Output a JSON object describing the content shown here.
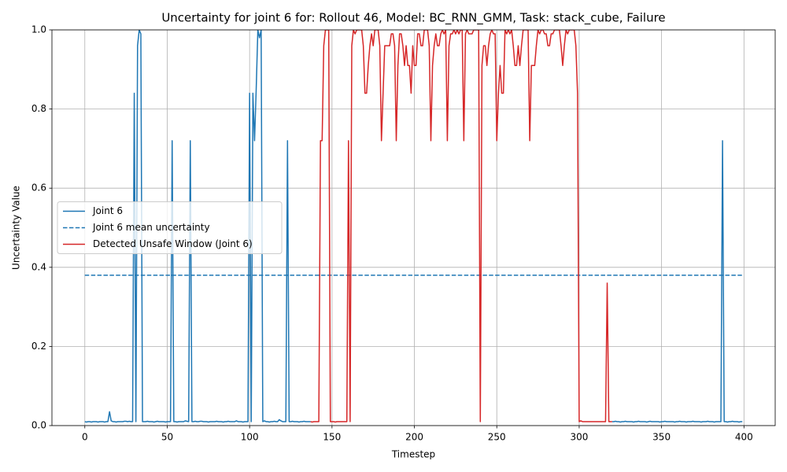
{
  "chart_data": {
    "type": "line",
    "title": "Uncertainty for joint 6 for: Rollout 46, Model: BC_RNN_GMM, Task: stack_cube, Failure",
    "xlabel": "Timestep",
    "ylabel": "Uncertainty Value",
    "xlim": [
      -19.95,
      418.95
    ],
    "ylim": [
      0,
      1
    ],
    "xticks": [
      0,
      50,
      100,
      150,
      200,
      250,
      300,
      350,
      400
    ],
    "yticks": [
      {
        "value": 0,
        "label": "0.0"
      },
      {
        "value": 0.2,
        "label": "0.2"
      },
      {
        "value": 0.4,
        "label": "0.4"
      },
      {
        "value": 0.6,
        "label": "0.6"
      },
      {
        "value": 0.8,
        "label": "0.8"
      },
      {
        "value": 1,
        "label": "1.0"
      }
    ],
    "grid": true,
    "legend": "center left",
    "series": [
      {
        "name": "Joint 6",
        "color": "#1f77b4",
        "style": "solid",
        "x": [
          0,
          1,
          2,
          3,
          4,
          5,
          6,
          7,
          8,
          9,
          10,
          11,
          12,
          13,
          14,
          15,
          16,
          17,
          18,
          19,
          20,
          21,
          22,
          23,
          24,
          25,
          26,
          27,
          28,
          29,
          30,
          31,
          32,
          33,
          34,
          35,
          36,
          37,
          38,
          39,
          40,
          41,
          42,
          43,
          44,
          45,
          46,
          47,
          48,
          49,
          50,
          51,
          52,
          53,
          54,
          55,
          56,
          57,
          58,
          59,
          60,
          61,
          62,
          63,
          64,
          65,
          66,
          67,
          68,
          69,
          70,
          71,
          72,
          73,
          74,
          75,
          76,
          77,
          78,
          79,
          80,
          81,
          82,
          83,
          84,
          85,
          86,
          87,
          88,
          89,
          90,
          91,
          92,
          93,
          94,
          95,
          96,
          97,
          98,
          99,
          100,
          101,
          102,
          103,
          104,
          105,
          106,
          107,
          108,
          109,
          110,
          111,
          112,
          113,
          114,
          115,
          116,
          117,
          118,
          119,
          120,
          121,
          122,
          123,
          124,
          125,
          126,
          127,
          128,
          129,
          130,
          131,
          132,
          133,
          134,
          135,
          136,
          137,
          138,
          139,
          140,
          141,
          142,
          143,
          144,
          145,
          146,
          147,
          148,
          149,
          150,
          151,
          152,
          153,
          154,
          155,
          156,
          157,
          158,
          159,
          160,
          161,
          162,
          163,
          164,
          165,
          166,
          167,
          168,
          169,
          170,
          171,
          172,
          173,
          174,
          175,
          176,
          177,
          178,
          179,
          180,
          181,
          182,
          183,
          184,
          185,
          186,
          187,
          188,
          189,
          190,
          191,
          192,
          193,
          194,
          195,
          196,
          197,
          198,
          199,
          200,
          201,
          202,
          203,
          204,
          205,
          206,
          207,
          208,
          209,
          210,
          211,
          212,
          213,
          214,
          215,
          216,
          217,
          218,
          219,
          220,
          221,
          222,
          223,
          224,
          225,
          226,
          227,
          228,
          229,
          230,
          231,
          232,
          233,
          234,
          235,
          236,
          237,
          238,
          239,
          240,
          241,
          242,
          243,
          244,
          245,
          246,
          247,
          248,
          249,
          250,
          251,
          252,
          253,
          254,
          255,
          256,
          257,
          258,
          259,
          260,
          261,
          262,
          263,
          264,
          265,
          266,
          267,
          268,
          269,
          270,
          271,
          272,
          273,
          274,
          275,
          276,
          277,
          278,
          279,
          280,
          281,
          282,
          283,
          284,
          285,
          286,
          287,
          288,
          289,
          290,
          291,
          292,
          293,
          294,
          295,
          296,
          297,
          298,
          299,
          300,
          301,
          302,
          303,
          304,
          305,
          306,
          307,
          308,
          309,
          310,
          311,
          312,
          313,
          314,
          315,
          316,
          317,
          318,
          319,
          320,
          321,
          322,
          323,
          324,
          325,
          326,
          327,
          328,
          329,
          330,
          331,
          332,
          333,
          334,
          335,
          336,
          337,
          338,
          339,
          340,
          341,
          342,
          343,
          344,
          345,
          346,
          347,
          348,
          349,
          350,
          351,
          352,
          353,
          354,
          355,
          356,
          357,
          358,
          359,
          360,
          361,
          362,
          363,
          364,
          365,
          366,
          367,
          368,
          369,
          370,
          371,
          372,
          373,
          374,
          375,
          376,
          377,
          378,
          379,
          380,
          381,
          382,
          383,
          384,
          385,
          386,
          387,
          388,
          389,
          390,
          391,
          392,
          393,
          394,
          395,
          396,
          397,
          398,
          399
        ],
        "values": [
          0.01,
          0.009,
          0.01,
          0.01,
          0.009,
          0.01,
          0.01,
          0.01,
          0.009,
          0.01,
          0.01,
          0.01,
          0.009,
          0.01,
          0.01,
          0.035,
          0.012,
          0.01,
          0.01,
          0.009,
          0.01,
          0.01,
          0.01,
          0.01,
          0.011,
          0.011,
          0.01,
          0.011,
          0.01,
          0.01,
          0.84,
          0.01,
          0.96,
          1.0,
          0.99,
          0.01,
          0.01,
          0.01,
          0.011,
          0.01,
          0.01,
          0.01,
          0.009,
          0.01,
          0.011,
          0.01,
          0.01,
          0.01,
          0.01,
          0.009,
          0.01,
          0.01,
          0.01,
          0.72,
          0.01,
          0.01,
          0.009,
          0.01,
          0.01,
          0.01,
          0.01,
          0.012,
          0.011,
          0.01,
          0.72,
          0.01,
          0.01,
          0.011,
          0.01,
          0.01,
          0.011,
          0.011,
          0.01,
          0.01,
          0.01,
          0.009,
          0.01,
          0.01,
          0.01,
          0.01,
          0.011,
          0.01,
          0.01,
          0.01,
          0.009,
          0.01,
          0.01,
          0.011,
          0.01,
          0.01,
          0.01,
          0.01,
          0.012,
          0.01,
          0.01,
          0.01,
          0.009,
          0.01,
          0.01,
          0.01,
          0.84,
          0.01,
          0.84,
          0.72,
          0.85,
          1.0,
          0.98,
          1.0,
          0.01,
          0.012,
          0.01,
          0.01,
          0.009,
          0.01,
          0.01,
          0.011,
          0.01,
          0.01,
          0.015,
          0.012,
          0.01,
          0.01,
          0.01,
          0.72,
          0.01,
          0.01,
          0.011,
          0.01,
          0.01,
          0.01,
          0.009,
          0.01,
          0.01,
          0.011,
          0.01,
          0.01,
          0.01,
          0.01,
          null,
          null,
          null,
          null,
          null,
          null,
          null,
          null,
          null,
          null,
          null,
          null,
          null,
          null,
          null,
          null,
          null,
          null,
          null,
          null,
          null,
          null,
          null,
          null,
          null,
          null,
          null,
          null,
          null,
          null,
          null,
          null,
          null,
          null,
          null,
          null,
          null,
          null,
          null,
          null,
          null,
          null,
          null,
          null,
          null,
          null,
          null,
          null,
          null,
          null,
          null,
          null,
          null,
          null,
          null,
          null,
          null,
          null,
          null,
          null,
          null,
          null,
          null,
          null,
          null,
          null,
          null,
          null,
          null,
          null,
          null,
          null,
          null,
          null,
          null,
          null,
          null,
          null,
          null,
          null,
          null,
          null,
          null,
          null,
          null,
          null,
          null,
          null,
          null,
          null,
          null,
          null,
          null,
          null,
          null,
          null,
          null,
          null,
          null,
          null,
          null,
          null,
          null,
          null,
          null,
          null,
          null,
          null,
          null,
          null,
          null,
          null,
          null,
          null,
          null,
          null,
          null,
          null,
          null,
          null,
          null,
          null,
          null,
          null,
          null,
          null,
          null,
          null,
          null,
          null,
          null,
          null,
          null,
          null,
          null,
          null,
          null,
          null,
          null,
          null,
          null,
          null,
          null,
          null,
          null,
          null,
          null,
          null,
          null,
          null,
          null,
          null,
          null,
          null,
          null,
          null,
          null,
          null,
          null,
          null,
          null,
          null,
          null,
          null,
          null,
          null,
          null,
          null,
          null,
          null,
          null,
          null,
          null,
          null,
          null,
          null,
          null,
          null,
          null,
          null,
          null,
          null,
          0.01,
          0.01,
          0.011,
          0.01,
          0.01,
          0.009,
          0.01,
          0.01,
          0.011,
          0.01,
          0.01,
          0.01,
          0.01,
          0.009,
          0.01,
          0.01,
          0.011,
          0.01,
          0.01,
          0.01,
          0.01,
          0.009,
          0.01,
          0.011,
          0.01,
          0.01,
          0.01,
          0.01,
          0.01,
          0.009,
          0.01,
          0.01,
          0.011,
          0.01,
          0.01,
          0.01,
          0.01,
          0.01,
          0.009,
          0.01,
          0.01,
          0.011,
          0.01,
          0.01,
          0.01,
          0.009,
          0.01,
          0.01,
          0.01,
          0.011,
          0.01,
          0.01,
          0.01,
          0.01,
          0.009,
          0.01,
          0.01,
          0.01,
          0.011,
          0.01,
          0.01,
          0.01,
          0.009,
          0.01,
          0.01,
          0.01,
          0.01,
          0.72,
          0.01,
          0.01,
          0.009,
          0.01,
          0.01,
          0.011,
          0.01,
          0.01,
          0.01,
          0.009,
          0.01,
          0.01
        ]
      },
      {
        "name": "Joint 6 mean uncertainty",
        "color": "#1f77b4",
        "style": "dashed",
        "x": [
          0,
          399
        ],
        "values": [
          0.38,
          0.38
        ]
      },
      {
        "name": "Detected Unsafe Window (Joint 6)",
        "color": "#d62728",
        "style": "solid",
        "x": [
          137,
          138,
          139,
          140,
          141,
          142,
          143,
          144,
          145,
          146,
          147,
          148,
          149,
          150,
          151,
          152,
          153,
          154,
          155,
          156,
          157,
          158,
          159,
          160,
          161,
          162,
          163,
          164,
          165,
          166,
          167,
          168,
          169,
          170,
          171,
          172,
          173,
          174,
          175,
          176,
          177,
          178,
          179,
          180,
          181,
          182,
          183,
          184,
          185,
          186,
          187,
          188,
          189,
          190,
          191,
          192,
          193,
          194,
          195,
          196,
          197,
          198,
          199,
          200,
          201,
          202,
          203,
          204,
          205,
          206,
          207,
          208,
          209,
          210,
          211,
          212,
          213,
          214,
          215,
          216,
          217,
          218,
          219,
          220,
          221,
          222,
          223,
          224,
          225,
          226,
          227,
          228,
          229,
          230,
          231,
          232,
          233,
          234,
          235,
          236,
          237,
          238,
          239,
          240,
          241,
          242,
          243,
          244,
          245,
          246,
          247,
          248,
          249,
          250,
          251,
          252,
          253,
          254,
          255,
          256,
          257,
          258,
          259,
          260,
          261,
          262,
          263,
          264,
          265,
          266,
          267,
          268,
          269,
          270,
          271,
          272,
          273,
          274,
          275,
          276,
          277,
          278,
          279,
          280,
          281,
          282,
          283,
          284,
          285,
          286,
          287,
          288,
          289,
          290,
          291,
          292,
          293,
          294,
          295,
          296,
          297,
          298,
          299,
          300,
          301,
          302,
          303,
          304,
          305,
          306,
          307,
          308,
          309,
          310,
          311,
          312,
          313,
          314,
          315,
          316,
          317,
          318,
          319,
          320
        ],
        "values": [
          0.01,
          0.009,
          0.01,
          0.01,
          0.01,
          0.01,
          0.72,
          0.72,
          0.96,
          1.0,
          1.0,
          1.0,
          0.01,
          0.01,
          0.01,
          0.009,
          0.01,
          0.01,
          0.01,
          0.01,
          0.01,
          0.01,
          0.01,
          0.72,
          0.01,
          0.96,
          1.0,
          0.99,
          1.0,
          1.0,
          1.0,
          1.0,
          0.96,
          0.84,
          0.84,
          0.91,
          0.96,
          0.99,
          0.96,
          1.0,
          1.0,
          1.0,
          0.96,
          0.72,
          0.84,
          0.96,
          0.96,
          0.96,
          0.96,
          0.99,
          0.99,
          0.96,
          0.72,
          0.91,
          0.99,
          0.99,
          0.96,
          0.91,
          0.96,
          0.91,
          0.91,
          0.84,
          0.96,
          0.91,
          0.91,
          0.99,
          0.99,
          0.96,
          0.96,
          1.0,
          1.0,
          1.0,
          0.96,
          0.72,
          0.91,
          0.96,
          0.99,
          0.96,
          0.96,
          0.99,
          1.0,
          0.99,
          1.0,
          0.72,
          0.96,
          0.99,
          0.99,
          1.0,
          0.99,
          1.0,
          0.99,
          1.0,
          1.0,
          0.72,
          0.99,
          1.0,
          0.99,
          0.99,
          0.99,
          1.0,
          1.0,
          1.0,
          1.0,
          0.01,
          0.91,
          0.96,
          0.96,
          0.91,
          0.96,
          0.99,
          1.0,
          0.99,
          0.99,
          0.72,
          0.84,
          0.91,
          0.84,
          0.84,
          1.0,
          0.99,
          1.0,
          0.99,
          1.0,
          0.96,
          0.91,
          0.91,
          0.96,
          0.91,
          0.96,
          1.0,
          1.0,
          1.0,
          1.0,
          0.72,
          0.91,
          0.91,
          0.91,
          0.96,
          1.0,
          0.99,
          1.0,
          1.0,
          0.99,
          0.99,
          0.96,
          0.96,
          0.99,
          0.99,
          1.0,
          1.0,
          1.0,
          1.0,
          0.96,
          0.91,
          0.96,
          1.0,
          0.99,
          1.0,
          1.0,
          1.0,
          1.0,
          0.96,
          0.84,
          0.01,
          0.012,
          0.01,
          0.01,
          0.01,
          0.01,
          0.01,
          0.01,
          0.01,
          0.01,
          0.01,
          0.01,
          0.01,
          0.01,
          0.01,
          0.01,
          0.01,
          0.36,
          0.01,
          0.01,
          0.01
        ]
      }
    ]
  }
}
